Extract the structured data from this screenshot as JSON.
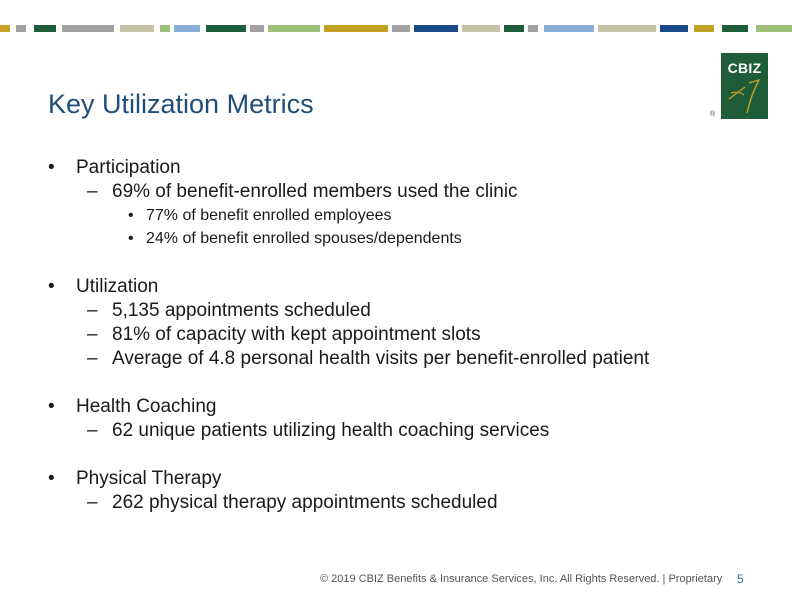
{
  "title": "Key Utilization Metrics",
  "logo": {
    "text": "CBIZ",
    "registered": "®"
  },
  "colors": {
    "title": "#1f4e79",
    "logo_bg": "#1e5d38",
    "logo_accent": "#c9a227",
    "page_number": "#2e6da4",
    "stripes": [
      "#c9a227",
      "#1e5d38",
      "#a3a3a3",
      "#9ec07a",
      "#8aaed6",
      "#c8c0a6",
      "#1a4a8a",
      "#c0a020",
      "#1e5d38"
    ]
  },
  "sections": [
    {
      "heading": "Participation",
      "items": [
        {
          "text": "69% of benefit-enrolled members used the clinic",
          "subitems": [
            "77% of benefit enrolled employees",
            "24% of benefit enrolled spouses/dependents"
          ]
        }
      ]
    },
    {
      "heading": "Utilization",
      "items": [
        {
          "text": "5,135 appointments scheduled"
        },
        {
          "text": "81% of capacity with kept appointment slots"
        },
        {
          "text": "Average of 4.8 personal health visits per benefit-enrolled patient"
        }
      ]
    },
    {
      "heading": "Health Coaching",
      "items": [
        {
          "text": "62 unique patients utilizing health coaching services"
        }
      ]
    },
    {
      "heading": "Physical Therapy",
      "items": [
        {
          "text": "262 physical therapy appointments scheduled"
        }
      ]
    }
  ],
  "markers": {
    "bullet": "•",
    "dash": "–"
  },
  "footer": {
    "copyright": "© 2019 CBIZ Benefits & Insurance Services, Inc. All Rights Reserved. | Proprietary",
    "page_number": "5"
  }
}
